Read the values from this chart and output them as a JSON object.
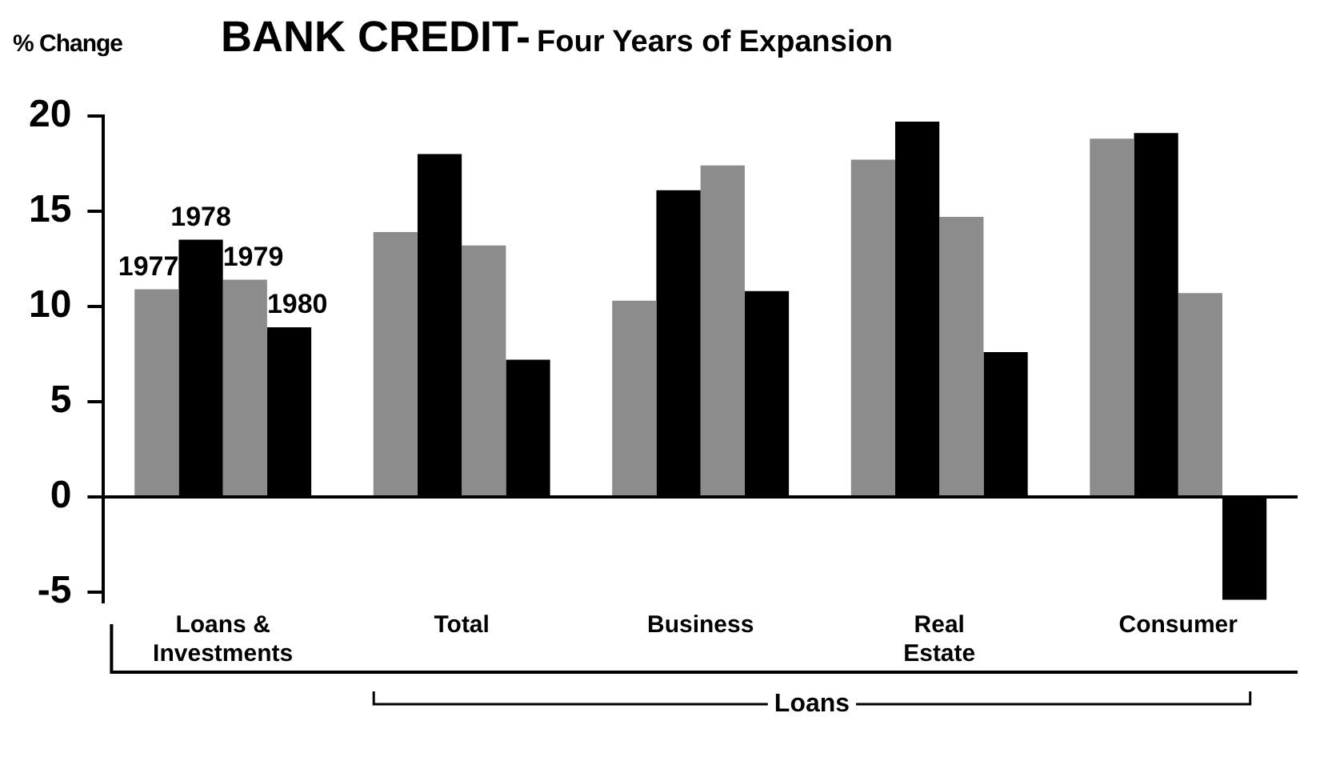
{
  "chart_data": {
    "type": "bar",
    "title": "BANK CREDIT-",
    "subtitle": "Four Years of Expansion",
    "ylabel": "% Change",
    "categories": [
      "Loans &\nInvestments",
      "Total",
      "Business",
      "Real\nEstate",
      "Consumer"
    ],
    "series": [
      {
        "name": "1977",
        "color": "#8c8c8c",
        "values": [
          10.9,
          13.9,
          10.3,
          17.7,
          18.8
        ]
      },
      {
        "name": "1978",
        "color": "#000000",
        "values": [
          13.5,
          18.0,
          16.1,
          19.7,
          19.1
        ]
      },
      {
        "name": "1979",
        "color": "#8c8c8c",
        "values": [
          11.4,
          13.2,
          17.4,
          14.7,
          10.7
        ]
      },
      {
        "name": "1980",
        "color": "#000000",
        "values": [
          8.9,
          7.2,
          10.8,
          7.6,
          -5.4
        ]
      }
    ],
    "ylim": [
      -5.5,
      20
    ],
    "yticks": [
      -5,
      0,
      5,
      10,
      15,
      20
    ],
    "grid": false,
    "legend": false,
    "ref_lines": [
      {
        "axis": "y",
        "value": 0,
        "color": "#000000"
      }
    ],
    "annotations": [
      "Loans"
    ]
  }
}
